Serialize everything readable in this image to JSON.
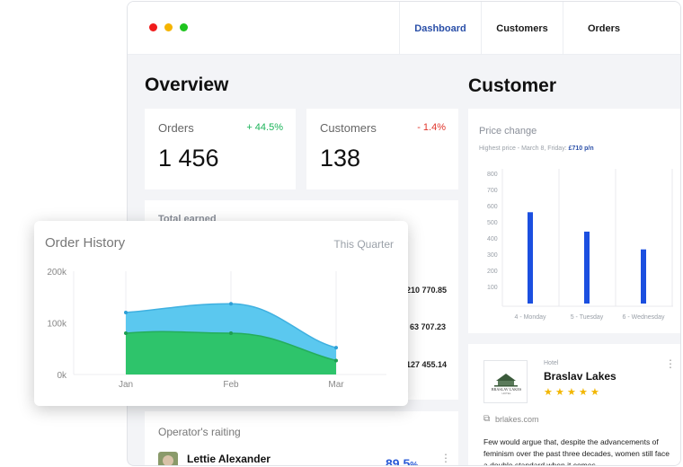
{
  "nav": {
    "traffic_lights": {
      "red": "#f01c1c",
      "yellow": "#f5b400",
      "green": "#1ec41e"
    },
    "tabs": [
      "Dashboard",
      "Customers",
      "Orders"
    ],
    "active_color": "#2a4fa8"
  },
  "overview": {
    "title": "Overview",
    "orders": {
      "label": "Orders",
      "change": "+ 44.5%",
      "value": "1 456",
      "change_color": "#1db45a"
    },
    "customers": {
      "label": "Customers",
      "change": "- 1.4%",
      "value": "138",
      "change_color": "#e0352b"
    },
    "total_earned": {
      "label": "Total earned",
      "values": [
        "210 770.85",
        "63 707.23",
        "127 455.14"
      ]
    },
    "operators": {
      "label": "Operator's raiting",
      "person": {
        "name": "Lettie Alexander",
        "score": "89.5",
        "unit": "%"
      }
    }
  },
  "customer": {
    "title": "Customer",
    "price_change": {
      "title": "Price change",
      "highest_prefix": "Highest price - March 8, Friday:",
      "highest_value": "£710 p/n"
    },
    "hotel": {
      "category": "Hotel",
      "name": "Braslav Lakes",
      "logo_text": "BRASLAV LAKES",
      "logo_sub": "HOTEL",
      "rating_stars": 5,
      "link": "brlakes.com",
      "description": "Few would argue that, despite the advancements of feminism over the past three decades, women still face a double standard when it comes"
    }
  },
  "order_history": {
    "title": "Order History",
    "period": "This Quarter"
  },
  "chart_data": [
    {
      "type": "bar",
      "title": "Price change",
      "categories": [
        "4 - Monday",
        "5 - Tuesday",
        "6 - Wednesday"
      ],
      "values": [
        565,
        445,
        335
      ],
      "y_ticks": [
        "800",
        "700",
        "600",
        "500",
        "400",
        "300",
        "200",
        "100"
      ],
      "ylim": [
        0,
        800
      ],
      "grid": "vertical",
      "color": "#1b4fe0"
    },
    {
      "type": "area",
      "title": "Order History",
      "categories": [
        "Jan",
        "Feb",
        "Mar"
      ],
      "y_ticks": [
        "200k",
        "100k",
        "0k"
      ],
      "ylim": [
        0,
        200000
      ],
      "series": [
        {
          "values": [
            120000,
            137000,
            52000
          ],
          "color": "#5bc8ef"
        },
        {
          "values": [
            80000,
            80000,
            27000
          ],
          "color": "#2ec46b"
        }
      ],
      "grid": "vertical"
    }
  ]
}
